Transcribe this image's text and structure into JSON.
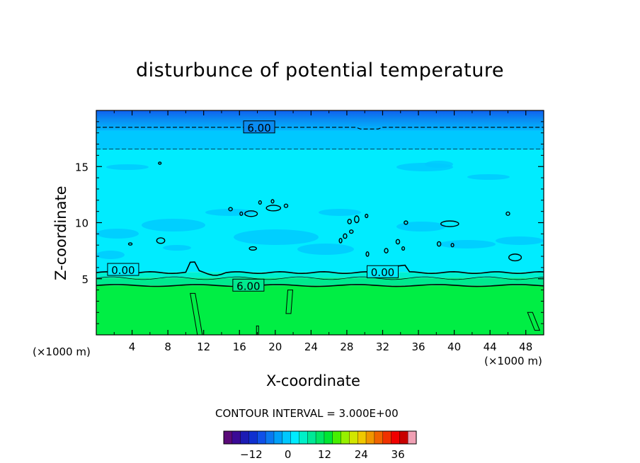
{
  "title": "disturbunce of potential temperature",
  "contour_interval": "CONTOUR INTERVAL = 3.000E+00",
  "x_unit_left": "(×1000 m)",
  "x_unit_right": "(×1000 m)",
  "colorbar": {
    "min": -21,
    "max": 42,
    "ticks": [
      -12,
      0,
      12,
      24,
      36
    ],
    "tick_labels": [
      "−12",
      "0",
      "12",
      "24",
      "36"
    ],
    "colors": [
      "#5a0a78",
      "#3a0a96",
      "#1c1cb4",
      "#1030d0",
      "#1050e8",
      "#0a78f0",
      "#00a0f8",
      "#00c8ff",
      "#00ebff",
      "#00f0c8",
      "#00e896",
      "#00e664",
      "#00e632",
      "#46ef00",
      "#96f000",
      "#d2e600",
      "#f0c800",
      "#f09600",
      "#f06400",
      "#f03200",
      "#f00000",
      "#c80000",
      "#f0a0b4"
    ]
  },
  "chart_data": {
    "type": "heatmap",
    "title": "disturbunce of potential temperature",
    "xlabel": "X-coordinate",
    "ylabel": "Z-coordinate",
    "xlim": [
      0,
      50
    ],
    "ylim": [
      0,
      20
    ],
    "x_ticks": [
      4,
      8,
      12,
      16,
      20,
      24,
      28,
      32,
      36,
      40,
      44,
      48
    ],
    "y_ticks": [
      5,
      10,
      15
    ],
    "contour_interval": 3.0,
    "contour_labels": [
      {
        "text": "6.00",
        "x": 18.2,
        "z": 18.5
      },
      {
        "text": "0.00",
        "x": 3.0,
        "z": 5.8
      },
      {
        "text": "0.00",
        "x": 32.0,
        "z": 5.6
      },
      {
        "text": "6.00",
        "x": 17.0,
        "z": 4.4
      }
    ],
    "layers": [
      {
        "z_from": 0.0,
        "z_to": 4.4,
        "value": 9,
        "color": "#00ee44"
      },
      {
        "z_from": 4.4,
        "z_to": 5.1,
        "value": 5,
        "color": "#00e98e"
      },
      {
        "z_from": 5.1,
        "z_to": 5.6,
        "value": 2,
        "color": "#00f0d0"
      },
      {
        "z_from": 5.6,
        "z_to": 16.5,
        "value": -1,
        "color": "#00ecff"
      },
      {
        "z_from": 16.5,
        "z_to": 18.2,
        "value": -3,
        "color": "#00c8ff"
      },
      {
        "z_from": 18.2,
        "z_to": 20.0,
        "value": -6,
        "color": "#0a8cf2"
      }
    ]
  }
}
